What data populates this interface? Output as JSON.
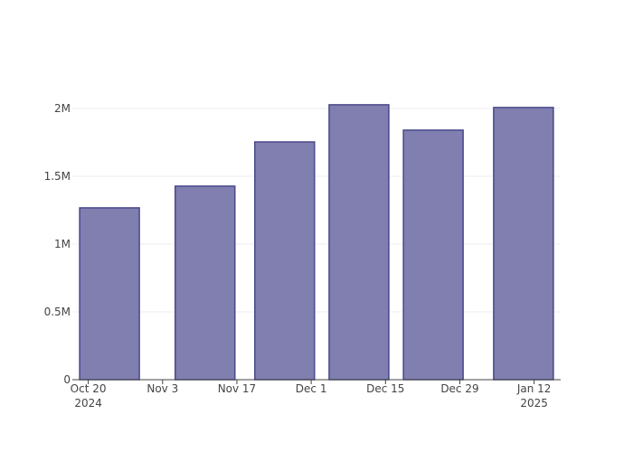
{
  "chart_data": {
    "type": "bar",
    "x": [
      "2024-10-24",
      "2024-11-11",
      "2024-11-26",
      "2024-12-10",
      "2024-12-24",
      "2025-01-10"
    ],
    "values": [
      1267000,
      1427000,
      1753000,
      2027000,
      1840000,
      2007000
    ],
    "color": "#807fb0",
    "edge_color": "#48488a",
    "xlim": [
      "2024-10-17",
      "2025-01-17"
    ],
    "xticks": [
      {
        "value": "2024-10-20",
        "label": "Oct 20\n2024"
      },
      {
        "value": "2024-11-03",
        "label": "Nov 3"
      },
      {
        "value": "2024-11-17",
        "label": "Nov 17"
      },
      {
        "value": "2024-12-01",
        "label": "Dec 1"
      },
      {
        "value": "2024-12-15",
        "label": "Dec 15"
      },
      {
        "value": "2024-12-29",
        "label": "Dec 29"
      },
      {
        "value": "2025-01-12",
        "label": "Jan 12\n2025"
      }
    ],
    "ylim": [
      0,
      2133000
    ],
    "yticks": [
      0,
      {
        "value": 500000,
        "label": "0.5M"
      },
      {
        "value": 1000000,
        "label": "1M"
      },
      {
        "value": 1500000,
        "label": "1.5M"
      },
      {
        "value": 2000000,
        "label": "2M"
      }
    ],
    "grid": true
  }
}
